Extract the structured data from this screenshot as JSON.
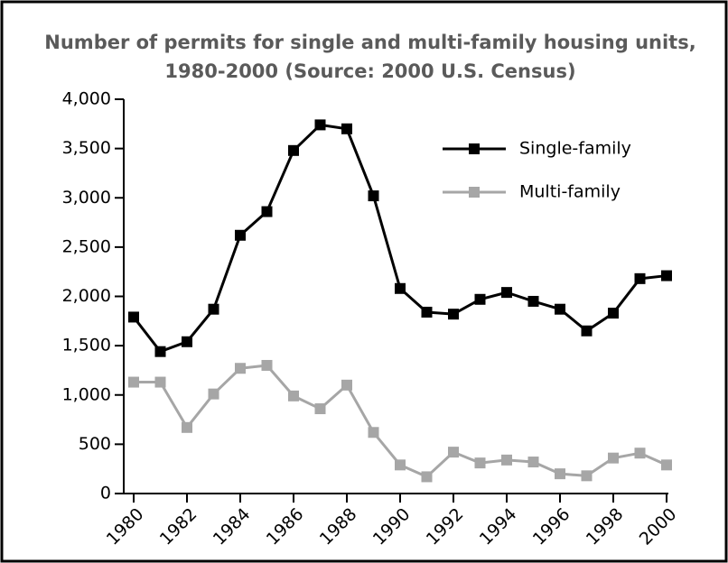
{
  "chart_data": {
    "type": "line",
    "title": "Number of permits for single and multi-family housing units,",
    "subtitle": "1980-2000 (Source: 2000 U.S. Census)",
    "x": [
      1980,
      1981,
      1982,
      1983,
      1984,
      1985,
      1986,
      1987,
      1988,
      1989,
      1990,
      1991,
      1992,
      1993,
      1994,
      1995,
      1996,
      1997,
      1998,
      1999,
      2000
    ],
    "series": [
      {
        "name": "Single-family",
        "color": "#000000",
        "values": [
          1790,
          1440,
          1540,
          1870,
          2620,
          2860,
          3480,
          3740,
          3700,
          3020,
          2080,
          1840,
          1820,
          1970,
          2040,
          1950,
          1870,
          1650,
          1830,
          2180,
          2210
        ]
      },
      {
        "name": "Multi-family",
        "color": "#a6a6a6",
        "values": [
          1130,
          1130,
          670,
          1010,
          1270,
          1300,
          990,
          860,
          1100,
          620,
          290,
          170,
          420,
          310,
          340,
          320,
          200,
          180,
          360,
          410,
          290
        ]
      }
    ],
    "xlim": [
      1980,
      2000
    ],
    "xticks": [
      1980,
      1982,
      1984,
      1986,
      1988,
      1990,
      1992,
      1994,
      1996,
      1998,
      2000
    ],
    "ylim": [
      0,
      4000
    ],
    "yticks": [
      0,
      500,
      {
        "value": 1000,
        "label": "1,000"
      },
      {
        "value": 1500,
        "label": "1,500"
      },
      {
        "value": 2000,
        "label": "2,000"
      },
      {
        "value": 2500,
        "label": "2,500"
      },
      {
        "value": 3000,
        "label": "3,000"
      },
      {
        "value": 3500,
        "label": "3,500"
      },
      {
        "value": 4000,
        "label": "4,000"
      }
    ],
    "legend": "top-right",
    "grid": false
  }
}
